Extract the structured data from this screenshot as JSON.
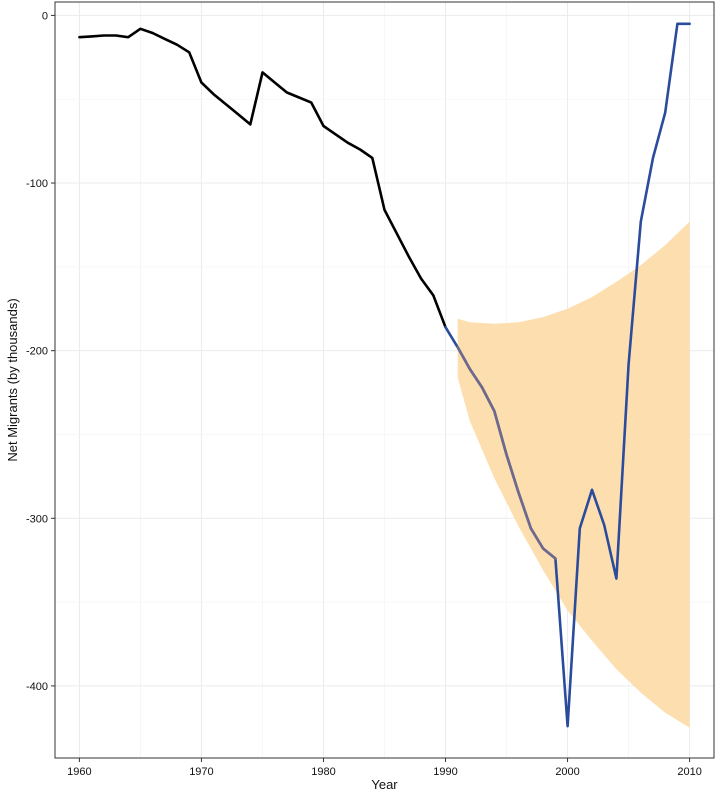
{
  "chart_data": {
    "type": "line",
    "title": "",
    "xlabel": "Year",
    "ylabel": "Net Migrants (by thousands)",
    "xlim": [
      1958,
      2012
    ],
    "ylim": [
      -443,
      8
    ],
    "x_ticks": [
      1960,
      1970,
      1980,
      1990,
      2000,
      2010
    ],
    "y_ticks": [
      0,
      -100,
      -200,
      -300,
      -400
    ],
    "grid": true,
    "legend": "none",
    "colors": {
      "historical": "#000000",
      "actual": "#2b4c9c",
      "forecast": "#6f6a8c",
      "interval": "#fddcaa",
      "grid": "#ebebeb",
      "panel_border": "#333333"
    },
    "series": [
      {
        "key": "historical",
        "x": [
          1960,
          1961,
          1962,
          1963,
          1964,
          1965,
          1966,
          1967,
          1968,
          1969,
          1970,
          1971,
          1972,
          1973,
          1974,
          1975,
          1976,
          1977,
          1978,
          1979,
          1980,
          1981,
          1982,
          1983,
          1984,
          1985,
          1986,
          1987,
          1988,
          1989,
          1990
        ],
        "y": [
          -13,
          -12.5,
          -12,
          -12,
          -13,
          -8,
          -10.5,
          -14,
          -17.5,
          -22,
          -40,
          -47,
          -53,
          -59,
          -65,
          -34,
          -40,
          -46,
          -49,
          -52,
          -66,
          -71,
          -76,
          -80,
          -85,
          -116,
          -130,
          -144,
          -157,
          -167,
          -186
        ]
      },
      {
        "key": "actual",
        "x": [
          1990,
          1991,
          1992,
          1993,
          1994,
          1995,
          1996,
          1997,
          1998,
          1999,
          2000,
          2001,
          2002,
          2003,
          2004,
          2005,
          2006,
          2007,
          2008,
          2009,
          2010
        ],
        "y": [
          -186,
          -198,
          -211,
          -222,
          -236,
          -262,
          -285,
          -306,
          -318,
          -324,
          -424,
          -306,
          -283,
          -304,
          -336,
          -208,
          -123,
          -85,
          -58,
          -5,
          -5
        ]
      },
      {
        "key": "forecast",
        "x": [
          1991,
          1992,
          1993,
          1994,
          1995,
          1996,
          1997,
          1998,
          1999
        ],
        "y": [
          -198,
          -211,
          -222,
          -236,
          -262,
          -285,
          -306,
          -318,
          -324
        ]
      }
    ],
    "interval": {
      "x": [
        1991,
        1992,
        1994,
        1996,
        1998,
        2000,
        2002,
        2004,
        2006,
        2008,
        2010
      ],
      "upper": [
        -181,
        -183,
        -184,
        -183,
        -180,
        -175,
        -168,
        -159,
        -149,
        -137,
        -123
      ],
      "lower": [
        -216,
        -242,
        -276,
        -305,
        -331,
        -355,
        -373,
        -390,
        -404,
        -416,
        -425
      ]
    }
  }
}
